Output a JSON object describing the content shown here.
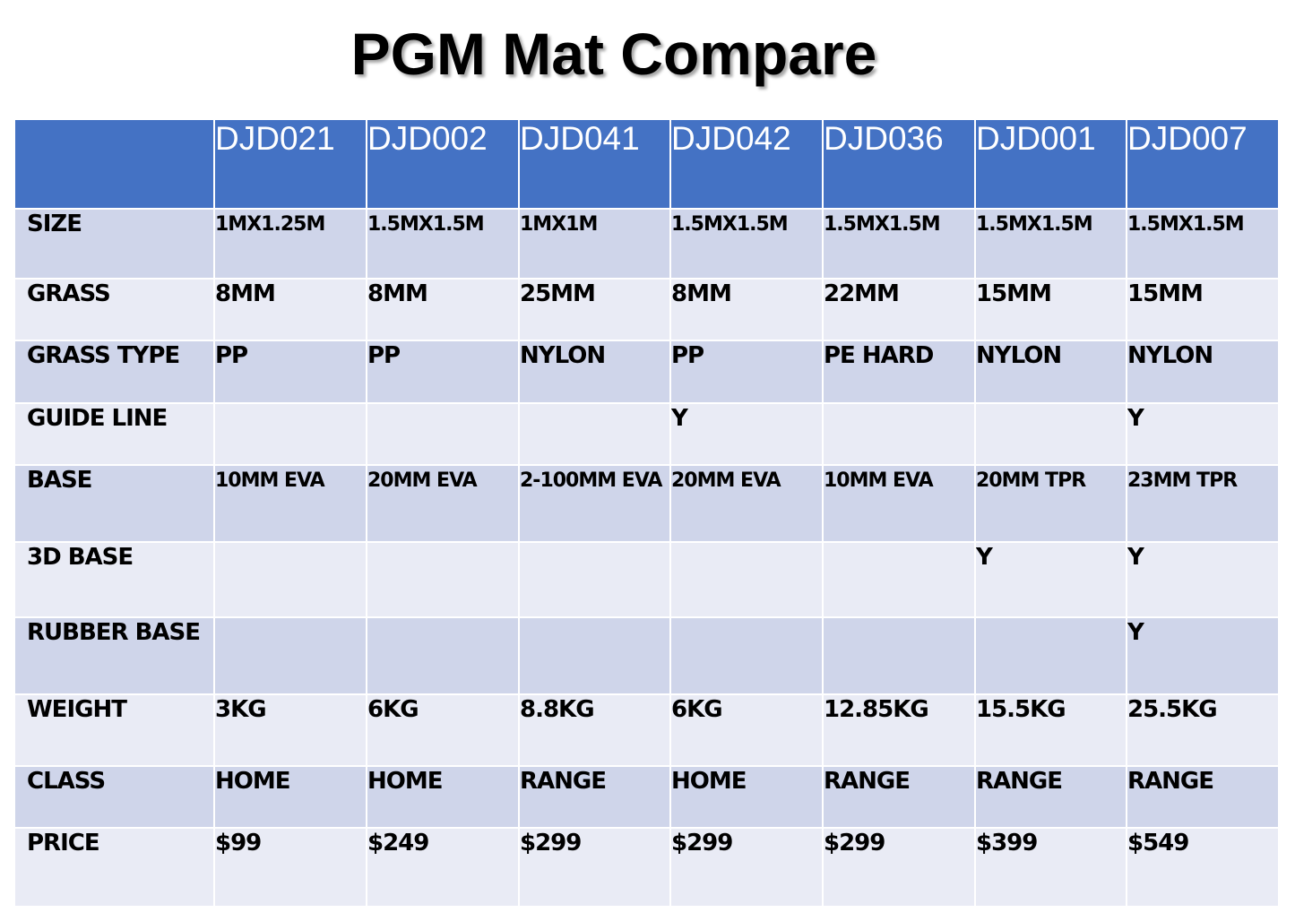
{
  "title": "PGM Mat Compare",
  "columns": [
    "DJD021",
    "DJD002",
    "DJD041",
    "DJD042",
    "DJD036",
    "DJD001",
    "DJD007"
  ],
  "rows": [
    {
      "label": "SIZE",
      "values": [
        "1MX1.25M",
        "1.5MX1.5M",
        "1MX1M",
        "1.5MX1.5M",
        "1.5MX1.5M",
        "1.5MX1.5M",
        "1.5MX1.5M"
      ]
    },
    {
      "label": "GRASS",
      "values": [
        "8MM",
        "8MM",
        "25MM",
        "8MM",
        "22MM",
        "15MM",
        "15MM"
      ]
    },
    {
      "label": "GRASS TYPE",
      "values": [
        "PP",
        "PP",
        "NYLON",
        "PP",
        "PE HARD",
        "NYLON",
        "NYLON"
      ]
    },
    {
      "label": "GUIDE LINE",
      "values": [
        "",
        "",
        "",
        "Y",
        "",
        "",
        "Y"
      ]
    },
    {
      "label": "BASE",
      "values": [
        "10MM EVA",
        "20MM EVA",
        "2-100MM EVA",
        "20MM EVA",
        "10MM EVA",
        "20MM TPR",
        "23MM TPR"
      ]
    },
    {
      "label": "3D BASE",
      "values": [
        "",
        "",
        "",
        "",
        "",
        "Y",
        "Y"
      ]
    },
    {
      "label": "RUBBER BASE",
      "values": [
        "",
        "",
        "",
        "",
        "",
        "",
        "Y"
      ]
    },
    {
      "label": "WEIGHT",
      "values": [
        "3KG",
        "6KG",
        "8.8KG",
        "6KG",
        "12.85KG",
        "15.5KG",
        "25.5KG"
      ]
    },
    {
      "label": "CLASS",
      "values": [
        "HOME",
        "HOME",
        "RANGE",
        "HOME",
        "RANGE",
        "RANGE",
        "RANGE"
      ]
    },
    {
      "label": "PRICE",
      "values": [
        "$99",
        "$249",
        "$299",
        "$299",
        "$299",
        "$399",
        "$549"
      ]
    }
  ],
  "colors": {
    "header": "#4472c4",
    "row_odd": "#cfd5ea",
    "row_even": "#e9ebf5"
  }
}
